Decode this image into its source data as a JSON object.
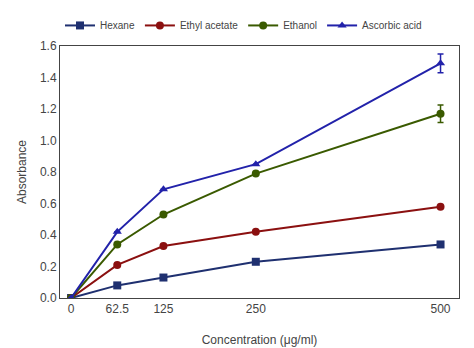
{
  "chart_data": {
    "type": "line",
    "xlabel": "Concentration (μg/ml)",
    "ylabel": "Absorbance",
    "x": [
      0,
      62.5,
      125,
      250,
      500
    ],
    "series": [
      {
        "name": "Hexane",
        "color": "#1f3070",
        "marker": "square",
        "values": [
          0,
          0.08,
          0.13,
          0.23,
          0.34
        ],
        "yerr": [
          0,
          0,
          0,
          0,
          0
        ]
      },
      {
        "name": "Ethyl acetate",
        "color": "#8B1010",
        "marker": "circle",
        "values": [
          0,
          0.21,
          0.33,
          0.42,
          0.58
        ],
        "yerr": [
          0,
          0,
          0,
          0,
          0
        ]
      },
      {
        "name": "Ethanol",
        "color": "#3a5a00",
        "marker": "circle",
        "values": [
          0,
          0.34,
          0.53,
          0.79,
          1.17
        ],
        "yerr": [
          0,
          0,
          0,
          0,
          0.055
        ]
      },
      {
        "name": "Ascorbic acid",
        "color": "#2222aa",
        "marker": "triangle-up",
        "values": [
          0,
          0.42,
          0.69,
          0.85,
          1.49
        ],
        "yerr": [
          0,
          0,
          0,
          0,
          0.06
        ]
      }
    ],
    "xlim": [
      -15,
      525
    ],
    "xticks": [
      0,
      62.5,
      125,
      250,
      500
    ],
    "ylim": [
      0,
      1.6
    ],
    "yticks": [
      {
        "value": 0,
        "label": "0.0"
      },
      0.2,
      0.4,
      0.6,
      0.8,
      {
        "value": 1.0,
        "label": "1.0"
      },
      1.2,
      1.4,
      1.6
    ],
    "grid": false,
    "legend": "upper left"
  }
}
